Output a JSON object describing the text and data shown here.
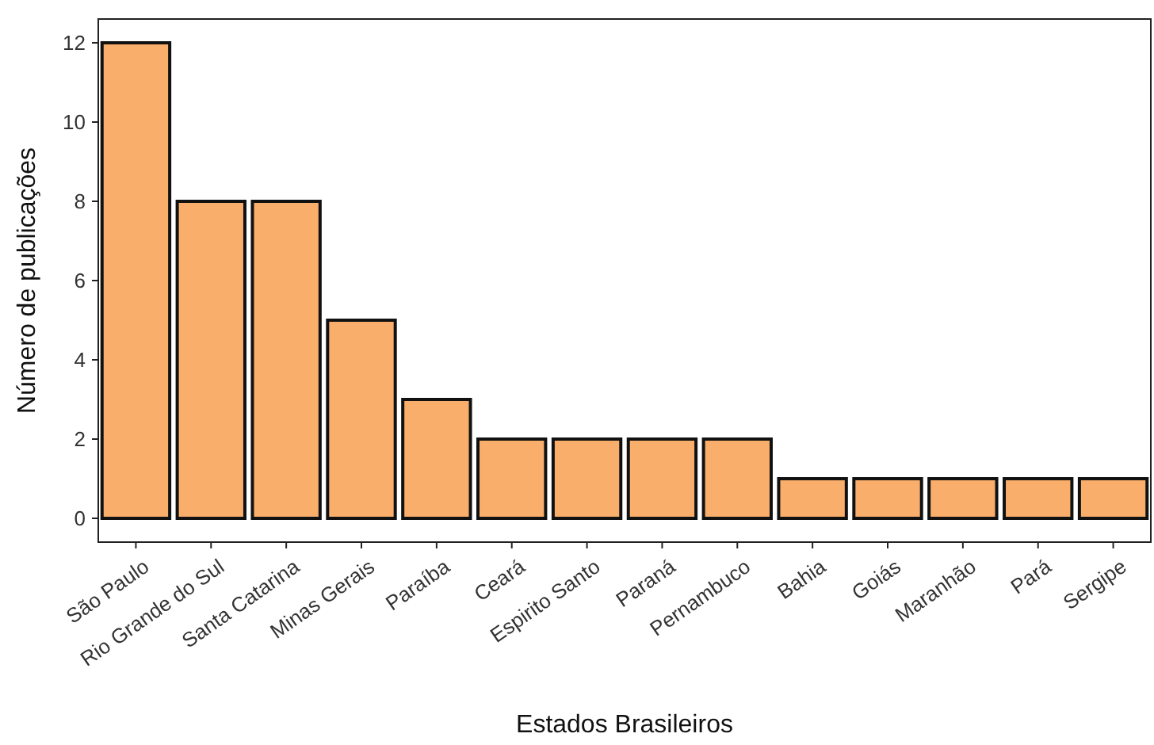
{
  "chart_data": {
    "type": "bar",
    "xlabel": "Estados Brasileiros",
    "ylabel": "Número de publicações",
    "categories": [
      "São Paulo",
      "Rio Grande do Sul",
      "Santa Catarina",
      "Minas Gerais",
      "Paraíba",
      "Ceará",
      "Espirito Santo",
      "Paraná",
      "Pernambuco",
      "Bahia",
      "Goiás",
      "Maranhão",
      "Pará",
      "Sergipe"
    ],
    "values": [
      12,
      8,
      8,
      5,
      3,
      2,
      2,
      2,
      2,
      1,
      1,
      1,
      1,
      1
    ],
    "color": "#f9ae6b",
    "ylim": [
      -0.6,
      12.6
    ],
    "yticks": [
      0,
      2,
      4,
      6,
      8,
      10,
      12
    ],
    "grid": false
  }
}
